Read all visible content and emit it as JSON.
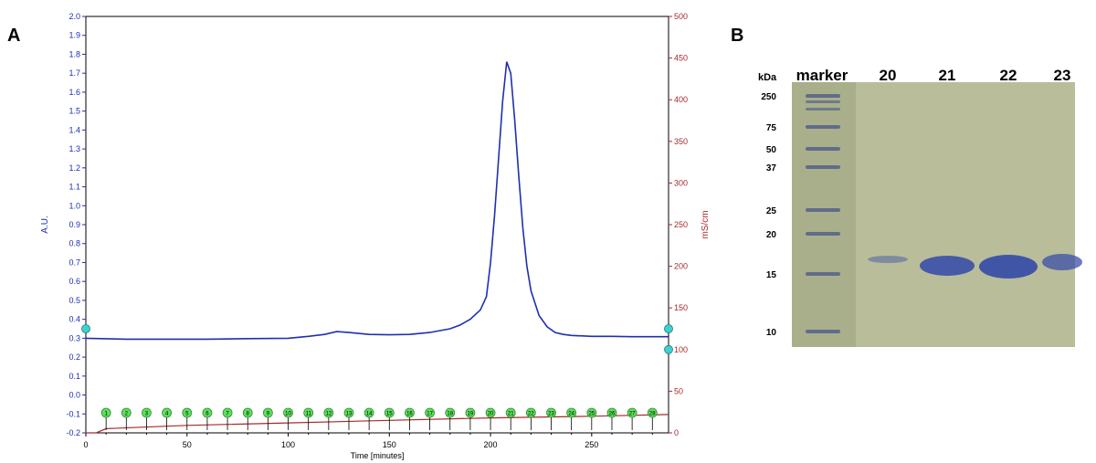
{
  "panels": {
    "a_label": "A",
    "b_label": "B"
  },
  "colors": {
    "absorbance": "#1f2fb0",
    "conductivity": "#a52a2a",
    "fraction_marker": "#5be05b",
    "tick_marker": "#40d0d0",
    "gel_bg": "#b9bd9a",
    "band": "#3a4fa8"
  },
  "chart_data": {
    "type": "line",
    "xlabel": "Time [minutes]",
    "ylabel_left": "A.U.",
    "ylabel_right": "mS/cm",
    "xlim": [
      0,
      288
    ],
    "ylim_left": [
      -0.2,
      2.0
    ],
    "ylim_right": [
      0,
      500
    ],
    "x_ticks": [
      "0",
      "50",
      "100",
      "150",
      "200",
      "250"
    ],
    "y_left_ticks": [
      "-0.2",
      "-0.1",
      "0.0",
      "0.1",
      "0.2",
      "0.3",
      "0.4",
      "0.5",
      "0.6",
      "0.7",
      "0.8",
      "0.9",
      "1.0",
      "1.1",
      "1.2",
      "1.3",
      "1.4",
      "1.5",
      "1.6",
      "1.7",
      "1.8",
      "1.9",
      "2.0"
    ],
    "y_right_ticks": [
      "0",
      "50",
      "100",
      "150",
      "200",
      "250",
      "300",
      "350",
      "400",
      "450",
      "500"
    ],
    "series": [
      {
        "name": "",
        "axis": "left",
        "x": [
          0,
          20,
          40,
          60,
          80,
          100,
          110,
          118,
          124,
          130,
          140,
          150,
          160,
          170,
          180,
          185,
          190,
          195,
          198,
          200,
          202,
          204,
          206,
          208,
          210,
          212,
          214,
          216,
          218,
          220,
          224,
          228,
          232,
          236,
          240,
          250,
          260,
          270,
          280,
          288
        ],
        "values": [
          0.3,
          0.295,
          0.295,
          0.295,
          0.298,
          0.3,
          0.31,
          0.32,
          0.335,
          0.33,
          0.32,
          0.318,
          0.32,
          0.33,
          0.35,
          0.37,
          0.4,
          0.45,
          0.52,
          0.7,
          0.95,
          1.25,
          1.55,
          1.76,
          1.7,
          1.45,
          1.15,
          0.88,
          0.68,
          0.55,
          0.42,
          0.36,
          0.33,
          0.32,
          0.315,
          0.31,
          0.31,
          0.308,
          0.308,
          0.308
        ]
      },
      {
        "name": "",
        "axis": "right",
        "x": [
          0,
          5,
          10,
          50,
          100,
          150,
          200,
          250,
          288
        ],
        "values": [
          0,
          0,
          5,
          9,
          12,
          15,
          18,
          20,
          22
        ]
      }
    ],
    "fraction_labels": [
      "1",
      "2",
      "3",
      "4",
      "5",
      "6",
      "7",
      "8",
      "9",
      "10",
      "11",
      "12",
      "13",
      "14",
      "15",
      "16",
      "17",
      "18",
      "19",
      "20",
      "21",
      "22",
      "23",
      "24",
      "25",
      "26",
      "27",
      "28"
    ]
  },
  "gel": {
    "kda_label": "kDa",
    "lane_labels": [
      "marker",
      "20",
      "21",
      "22",
      "23"
    ],
    "marker_sizes": [
      "250",
      "75",
      "50",
      "37",
      "25",
      "20",
      "15",
      "10"
    ]
  }
}
